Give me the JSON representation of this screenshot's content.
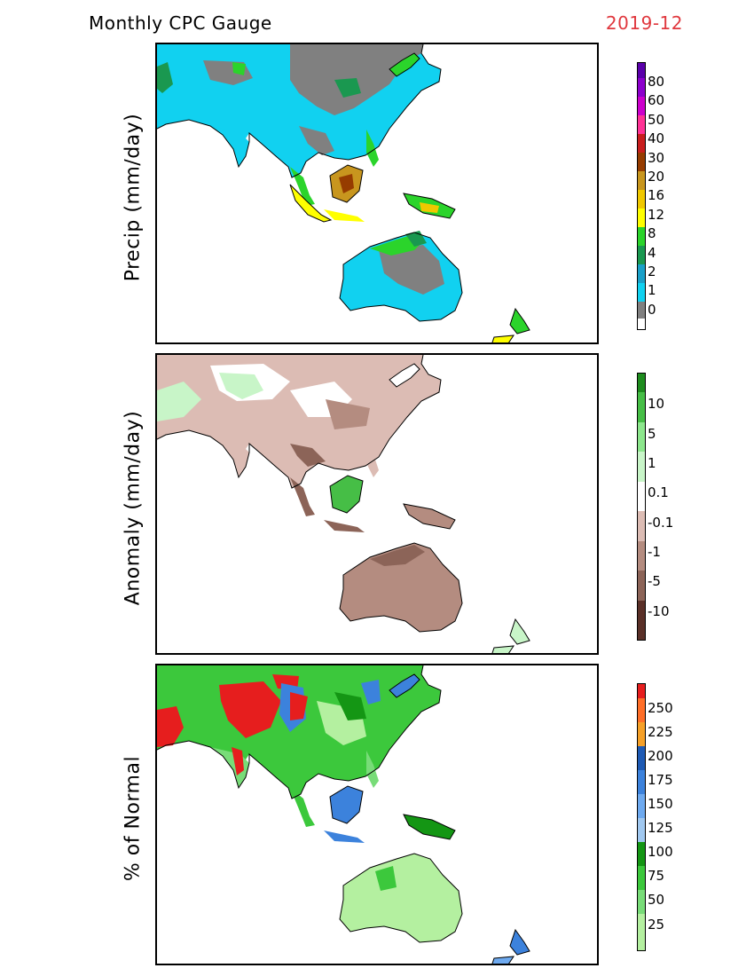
{
  "header": {
    "title": "Monthly CPC Gauge",
    "date": "2019-12"
  },
  "panels": [
    {
      "ylabel": "Precip (mm/day)",
      "colorbar": {
        "colors": [
          "#808080",
          "#11d1f0",
          "#1aa0c8",
          "#1a9850",
          "#2bd42b",
          "#ffff00",
          "#f0c800",
          "#c8961e",
          "#963c00",
          "#c81e1e",
          "#ff3296",
          "#cc00cc",
          "#8c00cc",
          "#5a00aa"
        ],
        "labels": [
          "0",
          "1",
          "2",
          "4",
          "8",
          "12",
          "16",
          "20",
          "30",
          "40",
          "50",
          "60",
          "80"
        ]
      }
    },
    {
      "ylabel": "Anomaly (mm/day)",
      "colorbar": {
        "colors": [
          "#5a3028",
          "#8c6458",
          "#b48c80",
          "#dcbcb4",
          "#ffffff",
          "#c8f5c8",
          "#8ce68c",
          "#46be46",
          "#1e8c1e"
        ],
        "labels": [
          "-10",
          "-5",
          "-1",
          "-0.1",
          "0.1",
          "1",
          "5",
          "10"
        ]
      }
    },
    {
      "ylabel": "% of Normal",
      "colorbar": {
        "colors": [
          "#b4f0a0",
          "#78dc78",
          "#3cc83c",
          "#149614",
          "#a0c8f0",
          "#6eaaf0",
          "#3c82dc",
          "#1e5ab4",
          "#f5a028",
          "#ff6e28",
          "#e61e1e"
        ],
        "labels": [
          "25",
          "50",
          "75",
          "100",
          "125",
          "150",
          "175",
          "200",
          "225",
          "250"
        ]
      }
    }
  ]
}
